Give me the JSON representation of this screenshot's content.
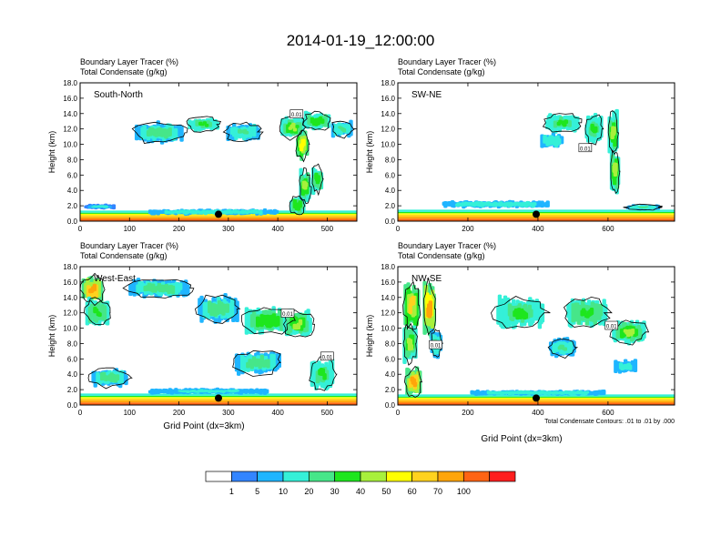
{
  "title": "2014-01-19_12:00:00",
  "colors": {
    "palette": [
      "#ffffff",
      "#3385ff",
      "#1fb5ff",
      "#35f0d8",
      "#46e689",
      "#1ee61e",
      "#a8f03c",
      "#ffff00",
      "#ffd21e",
      "#ffa50a",
      "#ff6414",
      "#ff1e1e"
    ],
    "contour": "#000000",
    "marker": "#000000"
  },
  "chart_data": [
    {
      "type": "heatmap",
      "panel": "South-North",
      "subtitle_1": "Boundary Layer Tracer   (%)",
      "subtitle_2": "Total Condensate   (g/kg)",
      "label": "South-North",
      "xlabel": "",
      "ylabel": "Height (km)",
      "xlim": [
        0,
        560
      ],
      "ylim": [
        0,
        18
      ],
      "xticks": [
        0,
        100,
        200,
        300,
        400,
        500
      ],
      "xtick_labels": [
        "0",
        "100",
        "200",
        "300",
        "400",
        "500"
      ],
      "yticks": [
        0,
        2,
        4,
        6,
        8,
        10,
        12,
        14,
        16,
        18
      ],
      "ytick_labels": [
        "0.0",
        "2.0",
        "4.0",
        "6.0",
        "8.0",
        "10.0",
        "12.0",
        "14.0",
        "16.0",
        "18.0"
      ],
      "marker": {
        "x": 280,
        "y": 0.9
      },
      "contour_labels": [
        {
          "x": 438,
          "y": 13.9,
          "text": "0.01"
        }
      ],
      "blobs": [
        {
          "x": 160,
          "y": 11.5,
          "w": 95,
          "h": 2.3,
          "v": 22
        },
        {
          "x": 250,
          "y": 12.6,
          "w": 60,
          "h": 1.6,
          "v": 26
        },
        {
          "x": 330,
          "y": 11.6,
          "w": 65,
          "h": 2.0,
          "v": 18
        },
        {
          "x": 430,
          "y": 12.2,
          "w": 45,
          "h": 2.4,
          "v": 38
        },
        {
          "x": 480,
          "y": 13.0,
          "w": 50,
          "h": 2.0,
          "v": 30
        },
        {
          "x": 530,
          "y": 12.0,
          "w": 40,
          "h": 1.8,
          "v": 16
        },
        {
          "x": 450,
          "y": 10.0,
          "w": 22,
          "h": 3.5,
          "v": 46
        },
        {
          "x": 455,
          "y": 4.5,
          "w": 20,
          "h": 3.5,
          "v": 34
        },
        {
          "x": 480,
          "y": 5.5,
          "w": 20,
          "h": 3.0,
          "v": 28
        },
        {
          "x": 440,
          "y": 2.0,
          "w": 28,
          "h": 2.0,
          "v": 30
        },
        {
          "x": 270,
          "y": 1.2,
          "w": 260,
          "h": 0.7,
          "v": 14
        },
        {
          "x": 40,
          "y": 1.9,
          "w": 60,
          "h": 0.6,
          "v": 10
        }
      ],
      "surface": {
        "base": 70,
        "thickness": 1.2
      }
    },
    {
      "type": "heatmap",
      "panel": "SW-NE",
      "subtitle_1": "Boundary Layer Tracer   (%)",
      "subtitle_2": "Total Condensate   (g/kg)",
      "label": "SW-NE",
      "xlabel": "",
      "ylabel": "Height (km)",
      "xlim": [
        0,
        790
      ],
      "ylim": [
        0,
        18
      ],
      "xticks": [
        0,
        200,
        400,
        600
      ],
      "xtick_labels": [
        "0",
        "200",
        "400",
        "600"
      ],
      "yticks": [
        0,
        2,
        4,
        6,
        8,
        10,
        12,
        14,
        16,
        18
      ],
      "ytick_labels": [
        "0.0",
        "2.0",
        "4.0",
        "6.0",
        "8.0",
        "10.0",
        "12.0",
        "14.0",
        "16.0",
        "18.0"
      ],
      "marker": {
        "x": 395,
        "y": 0.9
      },
      "contour_labels": [
        {
          "x": 535,
          "y": 9.5,
          "text": "0.01"
        }
      ],
      "blobs": [
        {
          "x": 470,
          "y": 12.8,
          "w": 90,
          "h": 2.0,
          "v": 26
        },
        {
          "x": 440,
          "y": 10.5,
          "w": 60,
          "h": 1.6,
          "v": 14
        },
        {
          "x": 560,
          "y": 12.0,
          "w": 45,
          "h": 3.0,
          "v": 24
        },
        {
          "x": 615,
          "y": 11.5,
          "w": 25,
          "h": 4.5,
          "v": 34
        },
        {
          "x": 620,
          "y": 6.5,
          "w": 22,
          "h": 4.5,
          "v": 38
        },
        {
          "x": 280,
          "y": 2.2,
          "w": 300,
          "h": 0.8,
          "v": 14
        },
        {
          "x": 700,
          "y": 1.8,
          "w": 90,
          "h": 0.6,
          "v": 16
        }
      ],
      "surface": {
        "base": 72,
        "thickness": 1.3
      }
    },
    {
      "type": "heatmap",
      "panel": "West-East",
      "subtitle_1": "Boundary Layer Tracer   (%)",
      "subtitle_2": "Total Condensate   (g/kg)",
      "label": "West-East",
      "xlabel": "Grid Point (dx=3km)",
      "ylabel": "Height (km)",
      "xlim": [
        0,
        560
      ],
      "ylim": [
        0,
        18
      ],
      "xticks": [
        0,
        100,
        200,
        300,
        400,
        500
      ],
      "xtick_labels": [
        "0",
        "100",
        "200",
        "300",
        "400",
        "500"
      ],
      "yticks": [
        0,
        2,
        4,
        6,
        8,
        10,
        12,
        14,
        16,
        18
      ],
      "ytick_labels": [
        "0.0",
        "2.0",
        "4.0",
        "6.0",
        "8.0",
        "10.0",
        "12.0",
        "14.0",
        "16.0",
        "18.0"
      ],
      "marker": {
        "x": 280,
        "y": 0.9
      },
      "contour_labels": [
        {
          "x": 420,
          "y": 11.9,
          "text": "0.01"
        },
        {
          "x": 500,
          "y": 6.3,
          "text": "0.01"
        }
      ],
      "blobs": [
        {
          "x": 25,
          "y": 15.0,
          "w": 40,
          "h": 3.0,
          "v": 62
        },
        {
          "x": 35,
          "y": 12.0,
          "w": 45,
          "h": 3.0,
          "v": 28
        },
        {
          "x": 160,
          "y": 15.2,
          "w": 120,
          "h": 2.0,
          "v": 20
        },
        {
          "x": 280,
          "y": 12.5,
          "w": 80,
          "h": 3.0,
          "v": 22
        },
        {
          "x": 380,
          "y": 11.0,
          "w": 90,
          "h": 3.0,
          "v": 30
        },
        {
          "x": 440,
          "y": 10.5,
          "w": 55,
          "h": 3.0,
          "v": 34
        },
        {
          "x": 360,
          "y": 5.5,
          "w": 90,
          "h": 2.5,
          "v": 22
        },
        {
          "x": 490,
          "y": 4.0,
          "w": 45,
          "h": 3.5,
          "v": 26
        },
        {
          "x": 60,
          "y": 3.5,
          "w": 70,
          "h": 2.0,
          "v": 22
        },
        {
          "x": 260,
          "y": 1.8,
          "w": 240,
          "h": 0.7,
          "v": 12
        }
      ],
      "surface": {
        "base": 72,
        "thickness": 1.3
      }
    },
    {
      "type": "heatmap",
      "panel": "NW-SE",
      "subtitle_1": "Boundary Layer Tracer   (%)",
      "subtitle_2": "Total Condensate   (g/kg)",
      "label": "NW-SE",
      "xlabel": "Grid Point (dx=3km)",
      "ylabel": "Height (km)",
      "xlim": [
        0,
        790
      ],
      "ylim": [
        0,
        18
      ],
      "xticks": [
        0,
        200,
        400,
        600
      ],
      "xtick_labels": [
        "0",
        "200",
        "400",
        "600"
      ],
      "yticks": [
        0,
        2,
        4,
        6,
        8,
        10,
        12,
        14,
        16,
        18
      ],
      "ytick_labels": [
        "0.0",
        "2.0",
        "4.0",
        "6.0",
        "8.0",
        "10.0",
        "12.0",
        "14.0",
        "16.0",
        "18.0"
      ],
      "marker": {
        "x": 395,
        "y": 0.9
      },
      "contour_labels": [
        {
          "x": 108,
          "y": 7.8,
          "text": "0.01"
        },
        {
          "x": 610,
          "y": 10.3,
          "text": "0.01"
        }
      ],
      "note": "Total Condensate Contours: .01 to .01 by .000",
      "blobs": [
        {
          "x": 40,
          "y": 13.0,
          "w": 40,
          "h": 5.0,
          "v": 48
        },
        {
          "x": 90,
          "y": 12.5,
          "w": 30,
          "h": 6.0,
          "v": 55
        },
        {
          "x": 35,
          "y": 8.0,
          "w": 35,
          "h": 4.0,
          "v": 32
        },
        {
          "x": 45,
          "y": 3.0,
          "w": 40,
          "h": 3.0,
          "v": 60
        },
        {
          "x": 110,
          "y": 8.0,
          "w": 28,
          "h": 3.0,
          "v": 18
        },
        {
          "x": 350,
          "y": 12.0,
          "w": 130,
          "h": 3.5,
          "v": 24
        },
        {
          "x": 540,
          "y": 12.0,
          "w": 110,
          "h": 3.0,
          "v": 28
        },
        {
          "x": 660,
          "y": 9.5,
          "w": 90,
          "h": 2.5,
          "v": 34
        },
        {
          "x": 470,
          "y": 7.5,
          "w": 70,
          "h": 2.0,
          "v": 16
        },
        {
          "x": 650,
          "y": 5.0,
          "w": 60,
          "h": 1.5,
          "v": 12
        },
        {
          "x": 400,
          "y": 1.6,
          "w": 380,
          "h": 0.6,
          "v": 14
        }
      ],
      "surface": {
        "base": 70,
        "thickness": 1.2
      }
    }
  ],
  "colorbar": {
    "labels": [
      "1",
      "5",
      "10",
      "20",
      "30",
      "40",
      "50",
      "60",
      "70",
      "100"
    ],
    "colors": [
      "#ffffff",
      "#3385ff",
      "#1fb5ff",
      "#35f0d8",
      "#46e689",
      "#1ee61e",
      "#a8f03c",
      "#ffff00",
      "#ffd21e",
      "#ffa50a",
      "#ff6414",
      "#ff1e1e"
    ]
  }
}
